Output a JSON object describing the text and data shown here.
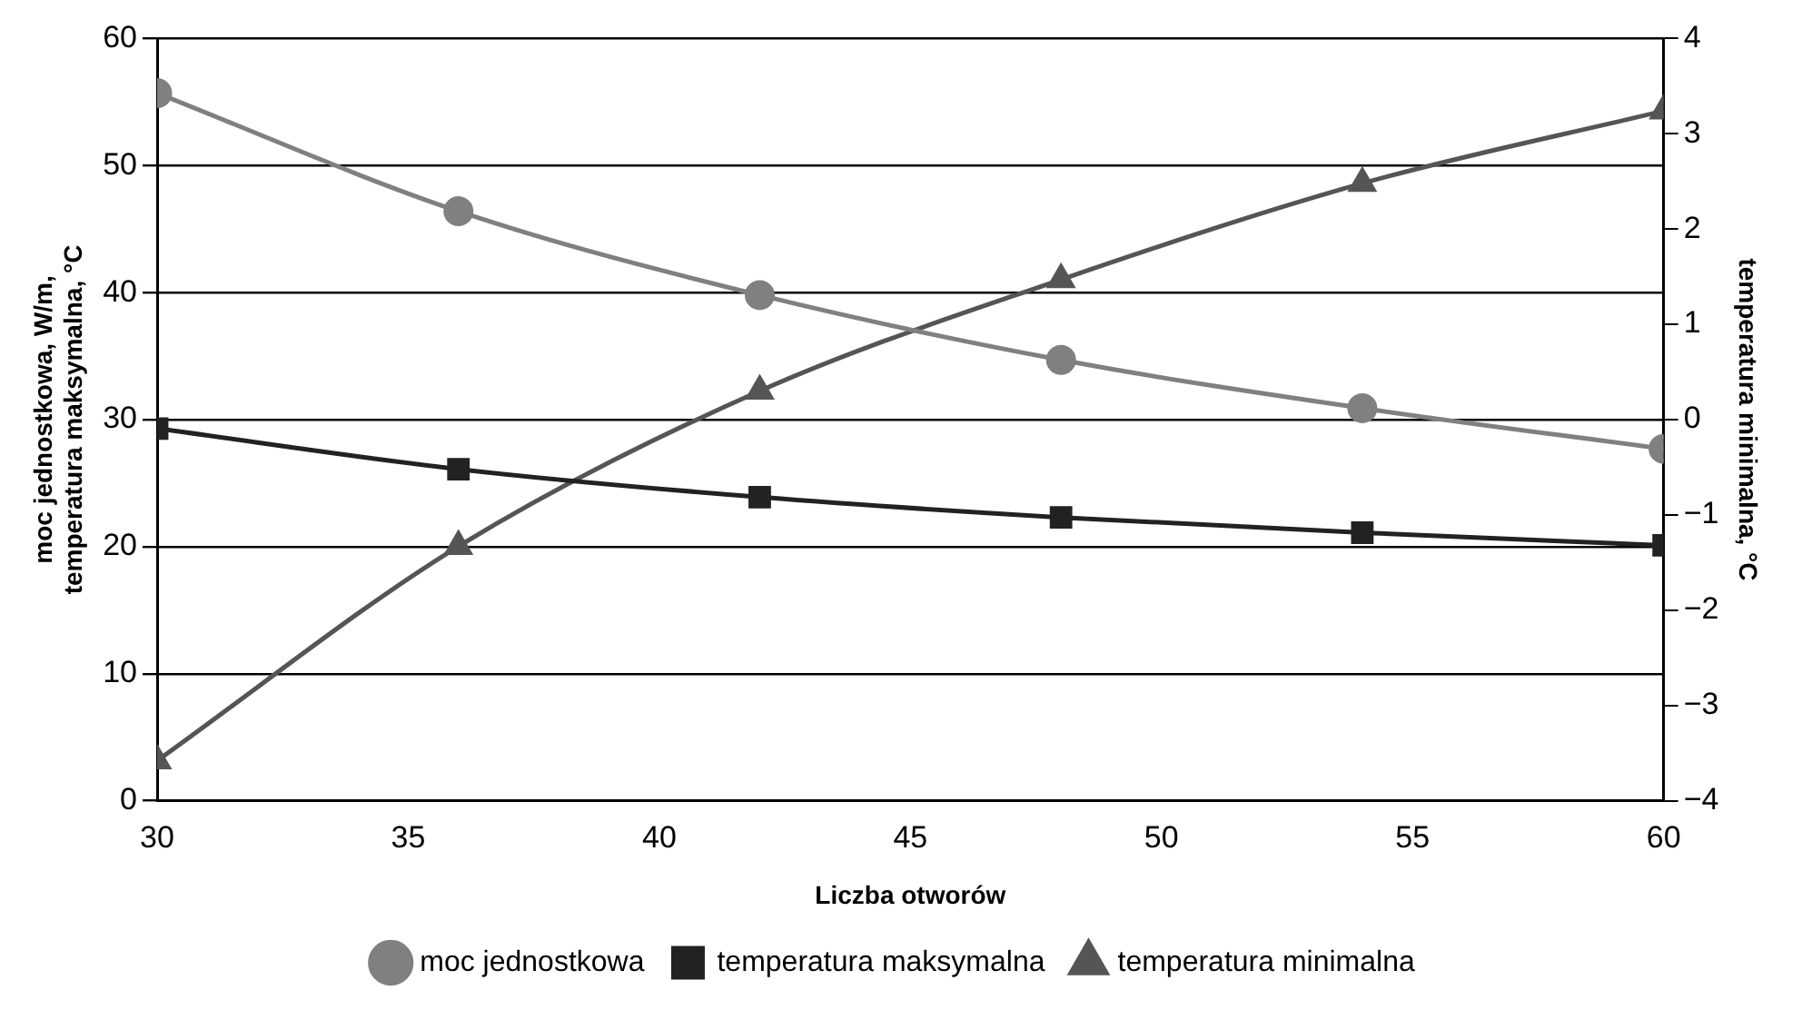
{
  "chart_data": {
    "type": "line",
    "xlabel": "Liczba otworów",
    "ylabel": "moc jednostkowa, W/m,\ntemperatura maksymalna, °C",
    "y2label": "temperatura minimalna, °C",
    "x": [
      30,
      36,
      42,
      48,
      54,
      60
    ],
    "xlim": [
      30,
      60
    ],
    "xticks": [
      30,
      35,
      40,
      45,
      50,
      55,
      60
    ],
    "ylim": [
      0,
      60
    ],
    "yticks": [
      0,
      10,
      20,
      30,
      40,
      50,
      60
    ],
    "y2lim": [
      -4,
      4
    ],
    "y2ticks": [
      -4,
      -3,
      -2,
      -1,
      0,
      1,
      2,
      3,
      4
    ],
    "grid": "y",
    "legend": "bottom",
    "line_style": "solid",
    "series": [
      {
        "name": "moc jednostkowa",
        "color": "#808080",
        "marker": "circle",
        "values": [
          55.7,
          46.4,
          39.8,
          34.7,
          30.9,
          27.7
        ]
      },
      {
        "name": "temperatura maksymalna",
        "color": "#222222",
        "marker": "square",
        "values": [
          29.3,
          26.1,
          23.9,
          22.3,
          21.1,
          20.1
        ]
      },
      {
        "name": "temperatura minimalna",
        "color": "#555555",
        "marker": "triangle",
        "axis": "y2",
        "values": [
          -3.58,
          -1.33,
          0.3,
          1.47,
          2.48,
          3.24
        ]
      }
    ]
  }
}
